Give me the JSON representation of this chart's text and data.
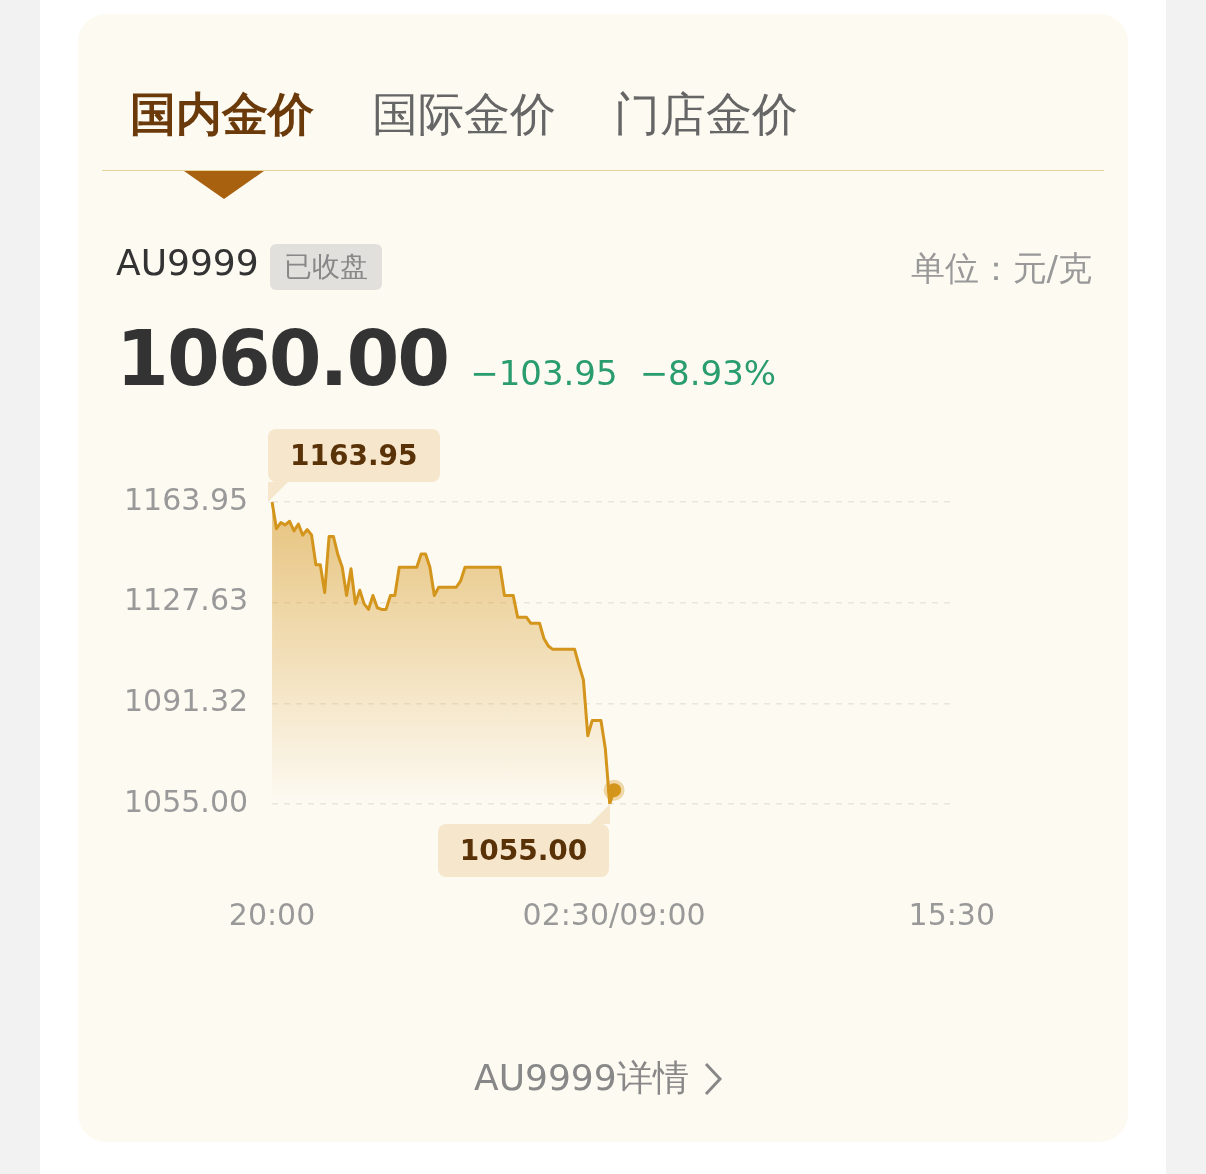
{
  "chart_data": {
    "type": "area",
    "title": "AU9999",
    "subtitle": "已收盘",
    "annotations": [
      "国内金价",
      "国际金价",
      "门店金价",
      "单位：元/克",
      "1060.00",
      "−103.95",
      "−8.93%",
      "AU9999详情",
      {
        "text": "1163.95",
        "x": "20:00",
        "y": 1163.95
      },
      {
        "text": "1055.00",
        "y": 1055.0
      }
    ],
    "categories": [
      "20:00",
      null,
      null,
      null,
      null,
      null,
      null,
      null,
      null,
      null,
      null,
      null,
      null,
      null,
      null,
      null,
      null,
      null,
      null,
      null,
      null,
      null,
      null,
      null,
      null,
      null,
      null,
      null,
      null,
      null,
      null,
      null,
      null,
      null,
      null,
      null,
      null,
      null,
      null,
      null,
      null,
      null,
      null,
      null,
      null,
      null,
      null,
      null,
      null,
      null,
      null,
      null,
      null,
      null,
      null,
      null,
      null,
      null,
      null,
      null,
      null,
      null,
      null,
      null,
      null,
      null,
      null,
      null,
      null,
      null,
      null,
      null,
      null,
      null,
      null,
      null,
      null,
      null,
      "02:30/09:00",
      null,
      null,
      null,
      null,
      null,
      null,
      null,
      null,
      null,
      null,
      null,
      null,
      null,
      null,
      null,
      null,
      null,
      null,
      null,
      null,
      null,
      null,
      null,
      null,
      null,
      null,
      null,
      null,
      null,
      null,
      null,
      null,
      null,
      null,
      null,
      null,
      null,
      null,
      null,
      null,
      null,
      null,
      null,
      null,
      null,
      null,
      null,
      null,
      null,
      null,
      null,
      null,
      null,
      null,
      null,
      null,
      null,
      null,
      null,
      null,
      null,
      null,
      null,
      null,
      null,
      null,
      null,
      null,
      null,
      null,
      null,
      null,
      null,
      null,
      null,
      null,
      "15:30"
    ],
    "series": [
      {
        "color": "#d4951c",
        "values": [
          1163.95,
          1154.3,
          1156.5,
          1155.7,
          1157,
          1153.5,
          1156,
          1152,
          1154,
          1152.1,
          1141.3,
          1141.3,
          1131.3,
          1151.5,
          1151.5,
          1145,
          1140.4,
          1130.2,
          1139.9,
          1127.2,
          1132.1,
          1127.2,
          1125.2,
          1130.2,
          1125.8,
          1125.2,
          1125.2,
          1130.2,
          1130.2,
          1140.4,
          1140.4,
          1140.4,
          1140.4,
          1140.4,
          1145.2,
          1145.2,
          1140.4,
          1130.2,
          1133.2,
          1133.2,
          1133.2,
          1133.2,
          1133.2,
          1135.5,
          1140.4,
          1140.4,
          1140.4,
          1140.4,
          1140.4,
          1140.4,
          1140.4,
          1140.4,
          1140.4,
          1130.2,
          1130.2,
          1130.2,
          1122.4,
          1122.4,
          1122.4,
          1120.2,
          1120.2,
          1120.2,
          1114.7,
          1112,
          1110.8,
          1110.8,
          1110.8,
          1110.8,
          1110.8,
          1110.8,
          1105,
          1099.8,
          1079.6,
          1085.1,
          1085.1,
          1085.1,
          1074.9,
          1055,
          1060,
          null,
          null,
          null,
          null,
          null,
          null,
          null,
          null,
          null,
          null,
          null,
          null,
          null,
          null,
          null,
          null,
          null,
          null,
          null,
          null,
          null,
          null,
          null,
          null,
          null,
          null,
          null,
          null,
          null,
          null,
          null,
          null,
          null,
          null,
          null,
          null,
          null,
          null,
          null,
          null,
          null,
          null,
          null,
          null,
          null,
          null,
          null,
          null,
          null,
          null,
          null,
          null,
          null,
          null,
          null,
          null,
          null,
          null,
          null,
          null,
          null,
          null,
          null,
          null,
          null,
          null,
          null,
          null,
          null,
          null,
          null,
          null,
          null,
          null,
          null,
          null,
          null
        ]
      }
    ],
    "ylim": [
      1055,
      1163.95
    ],
    "yticks": [
      1163.95,
      1127.63,
      1091.32,
      {
        "value": 1055,
        "label": "1055.00"
      }
    ],
    "grid": "y",
    "legend": false
  }
}
